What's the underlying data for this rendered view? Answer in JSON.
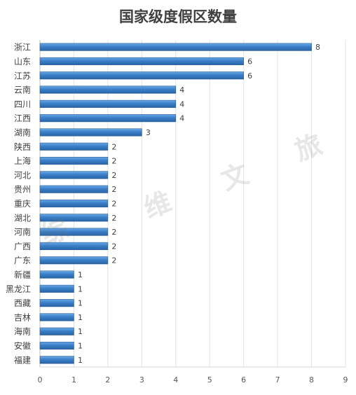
{
  "chart_data": {
    "type": "bar",
    "orientation": "horizontal",
    "title": "国家级度假区数量",
    "categories": [
      "浙江",
      "山东",
      "江苏",
      "云南",
      "四川",
      "江西",
      "湖南",
      "陕西",
      "上海",
      "河北",
      "贵州",
      "重庆",
      "湖北",
      "河南",
      "广西",
      "广东",
      "新疆",
      "黑龙江",
      "西藏",
      "吉林",
      "海南",
      "安徽",
      "福建"
    ],
    "values": [
      8,
      6,
      6,
      4,
      4,
      4,
      3,
      2,
      2,
      2,
      2,
      2,
      2,
      2,
      2,
      2,
      1,
      1,
      1,
      1,
      1,
      1,
      1
    ],
    "xlim": [
      0,
      9
    ],
    "xticks": [
      0,
      1,
      2,
      3,
      4,
      5,
      6,
      7,
      8,
      9
    ],
    "xlabel": "",
    "ylabel": "",
    "grid": "vertical",
    "bar_color": "#3a7fc8"
  },
  "watermark": [
    "综",
    "维",
    "文",
    "旅"
  ]
}
